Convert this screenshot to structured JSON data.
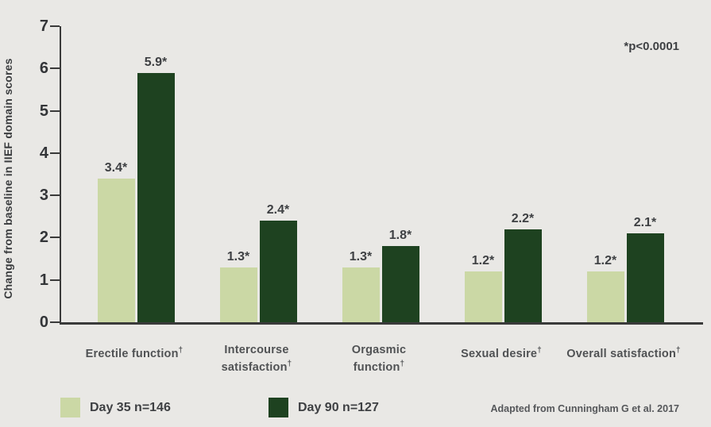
{
  "chart_data": {
    "type": "bar",
    "categories": [
      "Erectile function†",
      "Intercourse satisfaction†",
      "Orgasmic function†",
      "Sexual desire†",
      "Overall satisfaction†"
    ],
    "category_lines": [
      [
        "Erectile function†"
      ],
      [
        "Intercourse",
        "satisfaction†"
      ],
      [
        "Orgasmic",
        "function†"
      ],
      [
        "Sexual desire†"
      ],
      [
        "Overall satisfaction†"
      ]
    ],
    "series": [
      {
        "name": "Day 35 n=146",
        "color": "#cbd8a5",
        "values": [
          3.4,
          1.3,
          1.3,
          1.2,
          1.2
        ],
        "value_labels": [
          "3.4*",
          "1.3*",
          "1.3*",
          "1.2*",
          "1.2*"
        ]
      },
      {
        "name": "Day 90 n=127",
        "color": "#1e4220",
        "values": [
          5.9,
          2.4,
          1.8,
          2.2,
          2.1
        ],
        "value_labels": [
          "5.9*",
          "2.4*",
          "1.8*",
          "2.2*",
          "2.1*"
        ]
      }
    ],
    "ylabel": "Change from baseline in IIEF domain scores",
    "ylim": [
      0,
      7
    ],
    "yticks": [
      0,
      1,
      2,
      3,
      4,
      5,
      6,
      7
    ],
    "grid": false,
    "legend_position": "bottom",
    "annotation": "*p<0.0001",
    "source": "Adapted from Cunningham G et al. 2017"
  },
  "colors": {
    "background": "#e9e8e5",
    "axis": "#3a3a3a",
    "light_series": "#cbd8a5",
    "dark_series": "#1e4220",
    "text": "#3e4043",
    "category_text": "#505254"
  }
}
